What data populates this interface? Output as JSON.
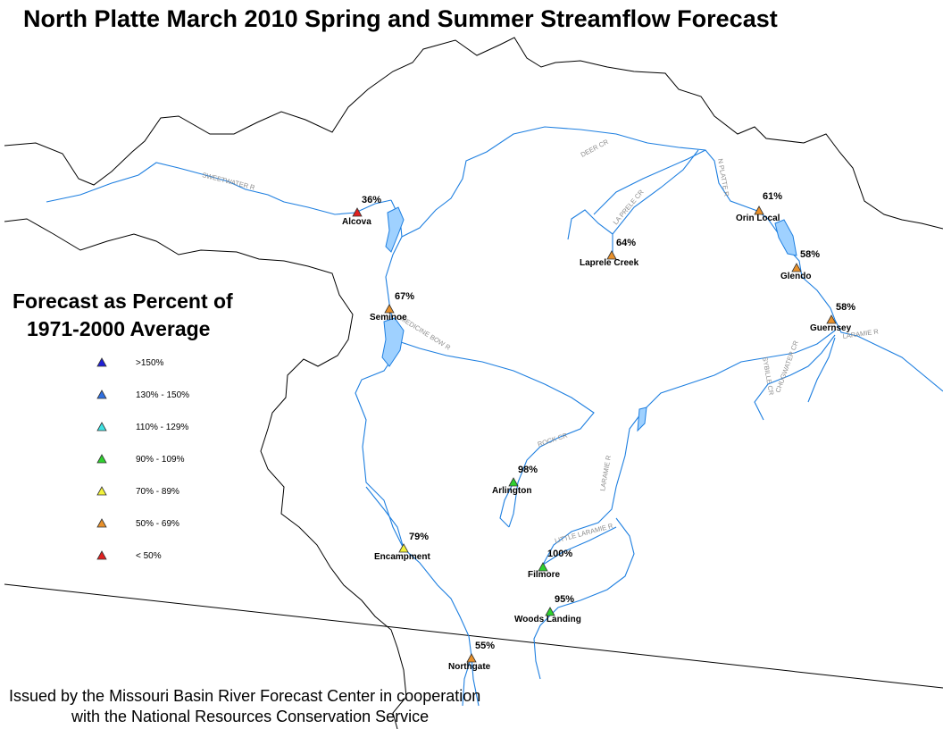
{
  "title": "North Platte March 2010 Spring and Summer Streamflow Forecast",
  "legend": {
    "title_line1": "Forecast as Percent of",
    "title_line2": "1971-2000 Average",
    "classes": [
      {
        "label": ">150%",
        "color": "#1f1fd6"
      },
      {
        "label": "130% - 150%",
        "color": "#2f6fe0"
      },
      {
        "label": "110% - 129%",
        "color": "#3ee3e3"
      },
      {
        "label": "90% - 109%",
        "color": "#2ed12e"
      },
      {
        "label": "70% - 89%",
        "color": "#f2f23a"
      },
      {
        "label": "50% - 69%",
        "color": "#e8902a"
      },
      {
        "label": "< 50%",
        "color": "#e02020"
      }
    ]
  },
  "stations": [
    {
      "name": "Alcova",
      "percent": "36%",
      "color": "#e02020"
    },
    {
      "name": "Seminoe",
      "percent": "67%",
      "color": "#e8902a"
    },
    {
      "name": "Orin Local",
      "percent": "61%",
      "color": "#e8902a"
    },
    {
      "name": "Laprele Creek",
      "percent": "64%",
      "color": "#e8902a"
    },
    {
      "name": "Glendo",
      "percent": "58%",
      "color": "#e8902a"
    },
    {
      "name": "Guernsey",
      "percent": "58%",
      "color": "#e8902a"
    },
    {
      "name": "Arlington",
      "percent": "98%",
      "color": "#2ed12e"
    },
    {
      "name": "Encampment",
      "percent": "79%",
      "color": "#f2f23a"
    },
    {
      "name": "Filmore",
      "percent": "100%",
      "color": "#2ed12e"
    },
    {
      "name": "Woods Landing",
      "percent": "95%",
      "color": "#2ed12e"
    },
    {
      "name": "Northgate",
      "percent": "55%",
      "color": "#e8902a"
    }
  ],
  "rivers": [
    "SWEETWATER R",
    "DEER CR",
    "N PLATTE R",
    "LA PRELE CR",
    "LARAMIE R",
    "SYBILLE CR",
    "CHUGWATER CR",
    "ROCK CR",
    "MEDICINE BOW R",
    "LARAMIE R",
    "LITTLE LARAMIE R"
  ],
  "credit_line1": "Issued by the Missouri Basin River Forecast Center in cooperation",
  "credit_line2": "with the National Resources Conservation Service",
  "colors": {
    "river": "#1e7fe0",
    "boundary": "#000000"
  }
}
